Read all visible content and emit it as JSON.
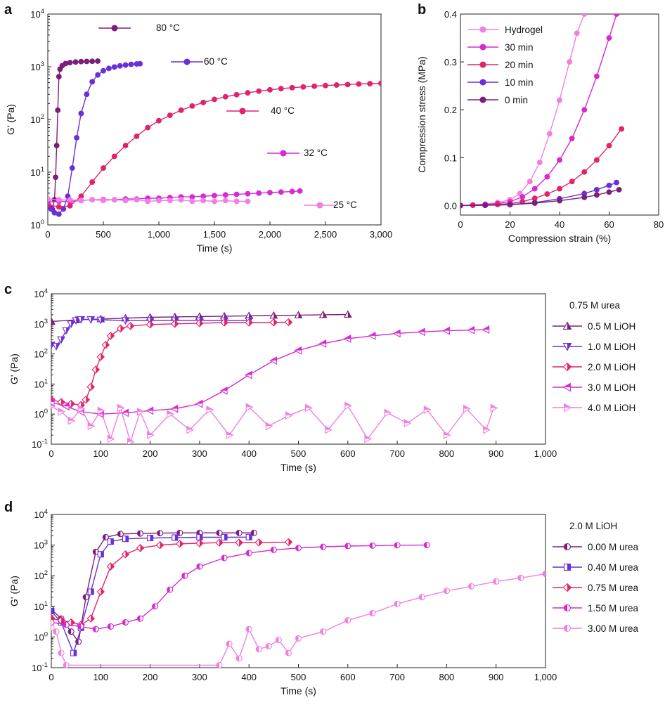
{
  "figure": {
    "panels": [
      "a",
      "b",
      "c",
      "d"
    ]
  },
  "chart_data": [
    {
      "panel": "a",
      "type": "line",
      "title": "",
      "xlabel": "Time (s)",
      "ylabel": "G' (Pa)",
      "xlim": [
        0,
        3000
      ],
      "ylim": [
        1,
        10000
      ],
      "yscale": "log",
      "xticks": [
        0,
        500,
        1000,
        1500,
        2000,
        2500,
        3000
      ],
      "xtick_labels": [
        "0",
        "500",
        "1,000",
        "1,500",
        "2,000",
        "2,500",
        "3,000"
      ],
      "yticks": [
        1,
        10,
        100,
        1000,
        10000
      ],
      "ytick_labels": [
        "10^0",
        "10^1",
        "10^2",
        "10^3",
        "10^4"
      ],
      "series": [
        {
          "name": "80 °C",
          "color": "#7b1f7a",
          "x": [
            0,
            20,
            40,
            60,
            70,
            80,
            90,
            100,
            110,
            130,
            160,
            200,
            250,
            300,
            350,
            400,
            450
          ],
          "y": [
            2.8,
            2.2,
            2.0,
            3.0,
            8,
            32,
            150,
            650,
            900,
            1050,
            1150,
            1200,
            1230,
            1250,
            1260,
            1270,
            1280
          ]
        },
        {
          "name": "60 °C",
          "color": "#6a2fd6",
          "x": [
            0,
            30,
            60,
            100,
            140,
            180,
            220,
            260,
            300,
            350,
            400,
            450,
            500,
            550,
            600,
            650,
            700,
            750,
            800,
            830
          ],
          "y": [
            2.6,
            2.0,
            1.7,
            1.6,
            2.0,
            3.5,
            12,
            45,
            130,
            300,
            520,
            700,
            840,
            930,
            990,
            1040,
            1080,
            1110,
            1130,
            1140
          ]
        },
        {
          "name": "40 °C",
          "color": "#e0226f",
          "x": [
            0,
            100,
            200,
            300,
            400,
            500,
            600,
            700,
            800,
            900,
            1000,
            1100,
            1200,
            1300,
            1400,
            1500,
            1600,
            1700,
            1800,
            1900,
            2000,
            2100,
            2200,
            2300,
            2400,
            2500,
            2600,
            2700,
            2800,
            2900,
            3000
          ],
          "y": [
            2.4,
            2.2,
            2.3,
            3.5,
            6.5,
            12,
            20,
            32,
            48,
            70,
            95,
            120,
            150,
            180,
            210,
            240,
            270,
            295,
            320,
            345,
            365,
            385,
            400,
            415,
            428,
            440,
            450,
            460,
            470,
            478,
            485
          ]
        },
        {
          "name": "32 °C",
          "color": "#d42ad8",
          "x": [
            0,
            100,
            200,
            300,
            400,
            500,
            600,
            700,
            800,
            900,
            1000,
            1100,
            1200,
            1300,
            1400,
            1500,
            1600,
            1700,
            1800,
            1900,
            2000,
            2100,
            2200,
            2270
          ],
          "y": [
            2.7,
            2.8,
            2.8,
            2.9,
            3.0,
            3.0,
            3.0,
            3.1,
            3.1,
            3.2,
            3.2,
            3.3,
            3.4,
            3.4,
            3.5,
            3.6,
            3.7,
            3.8,
            3.9,
            4.0,
            4.1,
            4.2,
            4.3,
            4.4
          ]
        },
        {
          "name": "25 °C",
          "color": "#f07ee6",
          "x": [
            0,
            100,
            200,
            300,
            400,
            500,
            600,
            700,
            800,
            900,
            1000,
            1100,
            1200,
            1300,
            1400,
            1500,
            1600,
            1700,
            1800
          ],
          "y": [
            3.1,
            3.0,
            3.0,
            2.9,
            3.0,
            2.9,
            3.0,
            2.9,
            3.0,
            2.8,
            2.9,
            2.9,
            3.0,
            2.8,
            2.9,
            2.8,
            2.9,
            2.8,
            2.8
          ]
        }
      ]
    },
    {
      "panel": "b",
      "type": "line",
      "xlabel": "Compression strain (%)",
      "ylabel": "Compression stress (MPa)",
      "xlim": [
        0,
        80
      ],
      "ylim": [
        -0.02,
        0.4
      ],
      "xticks": [
        0,
        20,
        40,
        60,
        80
      ],
      "xtick_labels": [
        "0",
        "20",
        "40",
        "60",
        "80"
      ],
      "yticks": [
        0,
        0.1,
        0.2,
        0.3,
        0.4
      ],
      "ytick_labels": [
        "0.0",
        "0.1",
        "0.2",
        "0.3",
        "0.4"
      ],
      "legend_position": "top-left",
      "series": [
        {
          "name": "Hydrogel",
          "color": "#f27fe0",
          "x": [
            0,
            5,
            10,
            15,
            20,
            24,
            28,
            32,
            36,
            40,
            44,
            47,
            50
          ],
          "y": [
            0,
            0.001,
            0.003,
            0.006,
            0.012,
            0.025,
            0.05,
            0.09,
            0.15,
            0.22,
            0.3,
            0.36,
            0.42
          ]
        },
        {
          "name": "30 min",
          "color": "#d62ad0",
          "x": [
            0,
            5,
            10,
            15,
            20,
            25,
            30,
            35,
            40,
            45,
            50,
            55,
            60,
            63
          ],
          "y": [
            0,
            0.001,
            0.002,
            0.004,
            0.008,
            0.018,
            0.035,
            0.06,
            0.095,
            0.14,
            0.2,
            0.27,
            0.35,
            0.4
          ]
        },
        {
          "name": "20 min",
          "color": "#e3236b",
          "x": [
            0,
            5,
            10,
            15,
            20,
            25,
            30,
            35,
            40,
            45,
            50,
            55,
            60,
            65
          ],
          "y": [
            0,
            0.0005,
            0.001,
            0.002,
            0.004,
            0.008,
            0.015,
            0.024,
            0.035,
            0.05,
            0.07,
            0.095,
            0.125,
            0.16
          ]
        },
        {
          "name": "10 min",
          "color": "#6a2fd6",
          "x": [
            0,
            10,
            20,
            30,
            40,
            50,
            55,
            60,
            63
          ],
          "y": [
            0,
            0.0005,
            0.002,
            0.006,
            0.014,
            0.025,
            0.033,
            0.042,
            0.048
          ]
        },
        {
          "name": "0 min",
          "color": "#7b1f7a",
          "x": [
            0,
            10,
            20,
            30,
            40,
            50,
            55,
            60,
            64
          ],
          "y": [
            0,
            0.0005,
            0.0015,
            0.005,
            0.01,
            0.017,
            0.022,
            0.028,
            0.033
          ]
        }
      ]
    },
    {
      "panel": "c",
      "type": "line",
      "xlabel": "Time (s)",
      "ylabel": "G' (Pa)",
      "xlim": [
        0,
        1000
      ],
      "ylim": [
        0.1,
        10000
      ],
      "yscale": "log",
      "xticks": [
        0,
        100,
        200,
        300,
        400,
        500,
        600,
        700,
        800,
        900,
        1000
      ],
      "xtick_labels": [
        "0",
        "100",
        "200",
        "300",
        "400",
        "500",
        "600",
        "700",
        "800",
        "900",
        "1,000"
      ],
      "yticks": [
        0.1,
        1,
        10,
        100,
        1000,
        10000
      ],
      "ytick_labels": [
        "10^-1",
        "10^0",
        "10^1",
        "10^2",
        "10^3",
        "10^4"
      ],
      "legend_title": "0.75 M urea",
      "series": [
        {
          "name": "0.5 M LiOH",
          "color": "#7b1f7a",
          "marker": "triangle-up",
          "x": [
            0,
            50,
            100,
            150,
            200,
            250,
            300,
            350,
            400,
            450,
            500,
            550,
            600
          ],
          "y": [
            1200,
            1350,
            1450,
            1550,
            1650,
            1700,
            1750,
            1800,
            1850,
            1900,
            1950,
            2000,
            2050
          ]
        },
        {
          "name": "1.0 M LiOH",
          "color": "#6a2fd6",
          "marker": "triangle-down",
          "x": [
            0,
            10,
            20,
            30,
            40,
            50,
            60,
            80,
            100,
            150,
            200,
            250,
            300,
            350,
            400
          ],
          "y": [
            200,
            180,
            300,
            600,
            1000,
            1300,
            1400,
            1400,
            1350,
            1300,
            1300,
            1300,
            1300,
            1280,
            1300
          ]
        },
        {
          "name": "2.0 M LiOH",
          "color": "#e3236b",
          "marker": "diamond",
          "x": [
            0,
            20,
            40,
            60,
            70,
            80,
            90,
            100,
            110,
            120,
            140,
            160,
            200,
            250,
            300,
            350,
            400,
            450,
            480
          ],
          "y": [
            3,
            2.5,
            2.2,
            2.0,
            3,
            8,
            30,
            80,
            200,
            400,
            700,
            850,
            950,
            1000,
            1050,
            1100,
            1100,
            1120,
            1130
          ]
        },
        {
          "name": "3.0 M LiOH",
          "color": "#d62ad0",
          "marker": "triangle-left",
          "x": [
            0,
            30,
            60,
            100,
            150,
            200,
            250,
            300,
            350,
            400,
            450,
            500,
            550,
            600,
            650,
            700,
            750,
            800,
            850,
            880
          ],
          "y": [
            2.5,
            1.8,
            1.2,
            1.0,
            1.1,
            1.3,
            1.5,
            2.2,
            6,
            20,
            60,
            130,
            220,
            320,
            400,
            480,
            540,
            590,
            620,
            640
          ]
        },
        {
          "name": "4.0 M LiOH",
          "color": "#f27fe0",
          "marker": "triangle-right",
          "x": [
            0,
            20,
            40,
            60,
            80,
            100,
            120,
            140,
            160,
            180,
            200,
            240,
            280,
            320,
            360,
            400,
            440,
            480,
            520,
            560,
            600,
            640,
            680,
            720,
            760,
            800,
            840,
            880,
            895
          ],
          "y": [
            1.8,
            1.2,
            0.6,
            1.5,
            0.4,
            1.3,
            0.15,
            1.6,
            0.12,
            1.2,
            0.2,
            1.0,
            0.3,
            1.4,
            0.2,
            1.7,
            0.4,
            0.9,
            1.6,
            0.3,
            1.9,
            0.15,
            1.1,
            0.5,
            1.4,
            0.2,
            1.5,
            0.3,
            1.6
          ]
        }
      ]
    },
    {
      "panel": "d",
      "type": "line",
      "xlabel": "Time (s)",
      "ylabel": "G' (Pa)",
      "xlim": [
        0,
        1000
      ],
      "ylim": [
        0.1,
        10000
      ],
      "yscale": "log",
      "xticks": [
        0,
        100,
        200,
        300,
        400,
        500,
        600,
        700,
        800,
        900,
        1000
      ],
      "xtick_labels": [
        "0",
        "100",
        "200",
        "300",
        "400",
        "500",
        "600",
        "700",
        "800",
        "900",
        "1,000"
      ],
      "yticks": [
        0.1,
        1,
        10,
        100,
        1000,
        10000
      ],
      "ytick_labels": [
        "10^-1",
        "10^0",
        "10^1",
        "10^2",
        "10^3",
        "10^4"
      ],
      "legend_title": "2.0 M LiOH",
      "series": [
        {
          "name": "0.00 M urea",
          "color": "#7b1f7a",
          "marker": "half-circle",
          "x": [
            0,
            20,
            40,
            55,
            70,
            90,
            110,
            140,
            180,
            220,
            260,
            300,
            340,
            380,
            410
          ],
          "y": [
            8,
            4,
            1.5,
            0.7,
            20,
            600,
            1800,
            2300,
            2400,
            2450,
            2500,
            2500,
            2500,
            2500,
            2500
          ]
        },
        {
          "name": "0.40 M urea",
          "color": "#6a2fd6",
          "marker": "square",
          "x": [
            0,
            20,
            45,
            60,
            80,
            100,
            120,
            150,
            200,
            250,
            300,
            350,
            400
          ],
          "y": [
            7,
            3,
            0.3,
            2,
            30,
            500,
            1300,
            1600,
            1700,
            1750,
            1800,
            1800,
            1820
          ]
        },
        {
          "name": "0.75 M urea",
          "color": "#e3236b",
          "marker": "diamond",
          "x": [
            0,
            20,
            40,
            60,
            80,
            100,
            120,
            150,
            180,
            220,
            260,
            300,
            340,
            380,
            420,
            480
          ],
          "y": [
            4,
            3.5,
            3,
            2.5,
            4,
            30,
            200,
            500,
            800,
            1000,
            1100,
            1150,
            1200,
            1200,
            1220,
            1250
          ]
        },
        {
          "name": "1.50 M urea",
          "color": "#d62ad0",
          "marker": "half-circle",
          "x": [
            0,
            30,
            60,
            90,
            120,
            150,
            180,
            210,
            240,
            270,
            300,
            350,
            400,
            450,
            500,
            550,
            600,
            650,
            700,
            760
          ],
          "y": [
            3,
            2.5,
            2.2,
            1.8,
            2.2,
            3,
            4,
            10,
            35,
            100,
            200,
            380,
            550,
            700,
            800,
            880,
            930,
            960,
            990,
            1000
          ]
        },
        {
          "name": "3.00 M urea",
          "color": "#f27fe0",
          "marker": "half-circle",
          "x": [
            0,
            10,
            20,
            30,
            340,
            360,
            380,
            400,
            420,
            440,
            460,
            480,
            500,
            550,
            600,
            650,
            700,
            750,
            800,
            850,
            900,
            950,
            1000
          ],
          "y": [
            2,
            1.5,
            0.3,
            0.12,
            0.12,
            0.6,
            0.2,
            1.8,
            0.4,
            0.5,
            0.8,
            0.3,
            0.9,
            1.5,
            3.5,
            6,
            12,
            20,
            32,
            45,
            65,
            85,
            115
          ]
        }
      ]
    }
  ]
}
